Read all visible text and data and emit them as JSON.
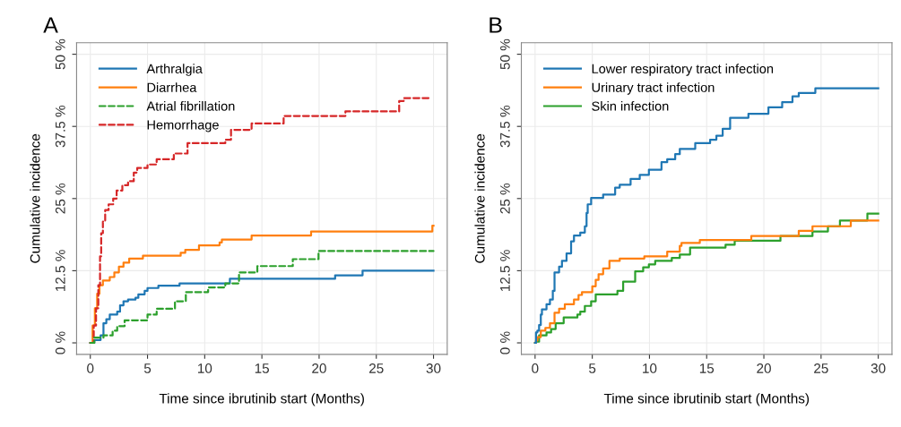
{
  "chart_data": [
    {
      "type": "step",
      "title": "A",
      "xlabel": "Time since ibrutinib start (Months)",
      "ylabel": "Cumulative incidence",
      "xlim": [
        -1.2,
        31.2
      ],
      "ylim": [
        -2,
        52
      ],
      "xticks": [
        0,
        5,
        10,
        15,
        20,
        25,
        30
      ],
      "yticks": [
        {
          "value": 0,
          "label": "0 %"
        },
        {
          "value": 12.5,
          "label": "12.5 %"
        },
        {
          "value": 25,
          "label": "25 %"
        },
        {
          "value": 37.5,
          "label": "37.5 %"
        },
        {
          "value": 50,
          "label": "50 %"
        }
      ],
      "grid": true,
      "legend": "top left",
      "series": [
        {
          "name": "Arthralgia",
          "color": "#1f77b4",
          "line_style": "solid",
          "x": [
            0,
            0.35,
            0.9,
            1.15,
            1.4,
            1.7,
            2.35,
            2.6,
            2.9,
            3.3,
            3.95,
            4.2,
            4.75,
            5.0,
            5.95,
            7.8,
            12.2,
            21.4,
            23.8,
            30
          ],
          "values": [
            0,
            0.5,
            1.3,
            3.4,
            4.1,
            4.9,
            5.4,
            6.5,
            7.2,
            7.5,
            7.8,
            8.4,
            9.0,
            9.5,
            9.9,
            10.3,
            11.1,
            11.7,
            12.5,
            12.5
          ]
        },
        {
          "name": "Diarrhea",
          "color": "#ff7f0e",
          "line_style": "solid",
          "x": [
            0,
            0.2,
            0.4,
            0.6,
            0.8,
            1.1,
            1.7,
            2.1,
            2.5,
            2.9,
            3.4,
            4.6,
            7.9,
            8.3,
            9.5,
            11.3,
            11.5,
            14.1,
            19.3,
            29.9,
            30
          ],
          "values": [
            0,
            3,
            6,
            8.5,
            10,
            10.8,
            11.4,
            12.2,
            13.2,
            13.9,
            14.6,
            15.1,
            15.6,
            16.1,
            16.9,
            17.4,
            17.9,
            18.6,
            19.3,
            20.3,
            20.3
          ]
        },
        {
          "name": "Atrial fibrillation",
          "color": "#2ca02c",
          "line_style": "dashed",
          "x": [
            0,
            0.35,
            1.15,
            1.95,
            2.35,
            3.0,
            5.0,
            5.8,
            7.4,
            8.35,
            10.3,
            11.8,
            13.0,
            14.6,
            17.7,
            19.95,
            30
          ],
          "values": [
            0,
            0.9,
            1.3,
            2.1,
            2.9,
            3.9,
            4.9,
            5.9,
            7.2,
            8.8,
            9.6,
            10.3,
            12.2,
            13.3,
            14.5,
            15.9,
            15.9
          ]
        },
        {
          "name": "Hemorrhage",
          "color": "#d62728",
          "line_style": "dashed",
          "x": [
            0,
            0.3,
            0.5,
            0.7,
            0.85,
            0.95,
            1.1,
            1.3,
            1.6,
            2.0,
            2.3,
            2.8,
            3.3,
            3.8,
            4.1,
            5.0,
            5.8,
            7.3,
            8.5,
            11.8,
            12.3,
            14.1,
            16.9,
            22.3,
            27.0,
            27.4,
            29.8
          ],
          "values": [
            0,
            3,
            6,
            10,
            15,
            19,
            21,
            23,
            24,
            25,
            26.4,
            27.3,
            28,
            29.5,
            30.3,
            30.9,
            31.8,
            32.8,
            34.6,
            35.2,
            36.9,
            38.0,
            39.3,
            40.1,
            41.9,
            42.4,
            42.4
          ]
        }
      ]
    },
    {
      "type": "step",
      "title": "B",
      "xlabel": "Time since ibrutinib start (Months)",
      "ylabel": "Cumulative incidence",
      "xlim": [
        -1.2,
        31.2
      ],
      "ylim": [
        -2,
        52
      ],
      "xticks": [
        0,
        5,
        10,
        15,
        20,
        25,
        30
      ],
      "yticks": [
        {
          "value": 0,
          "label": "0 %"
        },
        {
          "value": 12.5,
          "label": "12.5 %"
        },
        {
          "value": 25,
          "label": "25 %"
        },
        {
          "value": 37.5,
          "label": "37.5 %"
        },
        {
          "value": 50,
          "label": "50 %"
        }
      ],
      "grid": true,
      "legend": "top left",
      "series": [
        {
          "name": "Lower respiratory tract infection",
          "color": "#1f77b4",
          "line_style": "solid",
          "x": [
            0,
            0.08,
            0.2,
            0.35,
            0.5,
            0.6,
            1.0,
            1.3,
            1.55,
            1.7,
            2.1,
            2.35,
            2.75,
            3.15,
            3.4,
            3.95,
            4.35,
            4.5,
            4.6,
            4.9,
            5.95,
            7.0,
            7.4,
            8.35,
            9.15,
            9.95,
            11.05,
            11.55,
            12.25,
            12.65,
            14.0,
            15.3,
            15.85,
            16.4,
            17.05,
            18.65,
            20.4,
            21.6,
            22.5,
            23.05,
            24.5,
            30
          ],
          "values": [
            0,
            1.8,
            2.1,
            3.1,
            4.9,
            5.8,
            6.7,
            7.5,
            9.0,
            12.2,
            13.2,
            14.2,
            15.5,
            17.6,
            18.6,
            19.1,
            20.2,
            22.5,
            24.0,
            25.1,
            25.7,
            26.9,
            27.4,
            28.4,
            29.1,
            30.0,
            31.3,
            31.8,
            32.7,
            33.6,
            34.6,
            35.2,
            35.9,
            37.1,
            39.0,
            39.7,
            40.8,
            41.7,
            42.7,
            43.3,
            44.1,
            44.1
          ]
        },
        {
          "name": "Urinary tract infection",
          "color": "#ff7f0e",
          "line_style": "solid",
          "x": [
            0,
            0.08,
            0.2,
            0.5,
            0.9,
            1.3,
            1.7,
            2.1,
            2.6,
            3.4,
            3.8,
            4.1,
            5.0,
            5.3,
            5.55,
            5.95,
            6.5,
            7.4,
            9.55,
            11.55,
            12.65,
            12.8,
            14.4,
            18.9,
            23.05,
            24.25,
            27.6,
            30
          ],
          "values": [
            0,
            0.4,
            1.0,
            2.1,
            2.6,
            3.4,
            5.2,
            5.9,
            6.7,
            7.5,
            8.3,
            8.8,
            9.8,
            10.9,
            11.9,
            12.9,
            14.2,
            14.6,
            15.0,
            15.8,
            16.8,
            17.3,
            17.8,
            18.5,
            19.4,
            20.2,
            21.2,
            21.2
          ]
        },
        {
          "name": "Skin infection",
          "color": "#2ca02c",
          "line_style": "solid",
          "x": [
            0,
            0.08,
            0.35,
            1.0,
            1.4,
            1.8,
            2.5,
            3.7,
            3.95,
            4.35,
            4.9,
            5.3,
            7.2,
            7.7,
            8.75,
            9.45,
            9.95,
            10.5,
            11.95,
            12.65,
            13.55,
            16.65,
            17.45,
            21.45,
            24.25,
            25.6,
            26.65,
            29.05,
            30
          ],
          "values": [
            0,
            0.2,
            1.3,
            1.8,
            2.4,
            3.4,
            4.4,
            4.9,
            5.4,
            6.4,
            7.2,
            8.4,
            9.0,
            10.6,
            12.4,
            13.1,
            13.6,
            14.2,
            14.7,
            15.3,
            16.5,
            17.0,
            17.7,
            18.5,
            19.3,
            20.2,
            21.2,
            22.4,
            22.4
          ]
        }
      ]
    }
  ]
}
